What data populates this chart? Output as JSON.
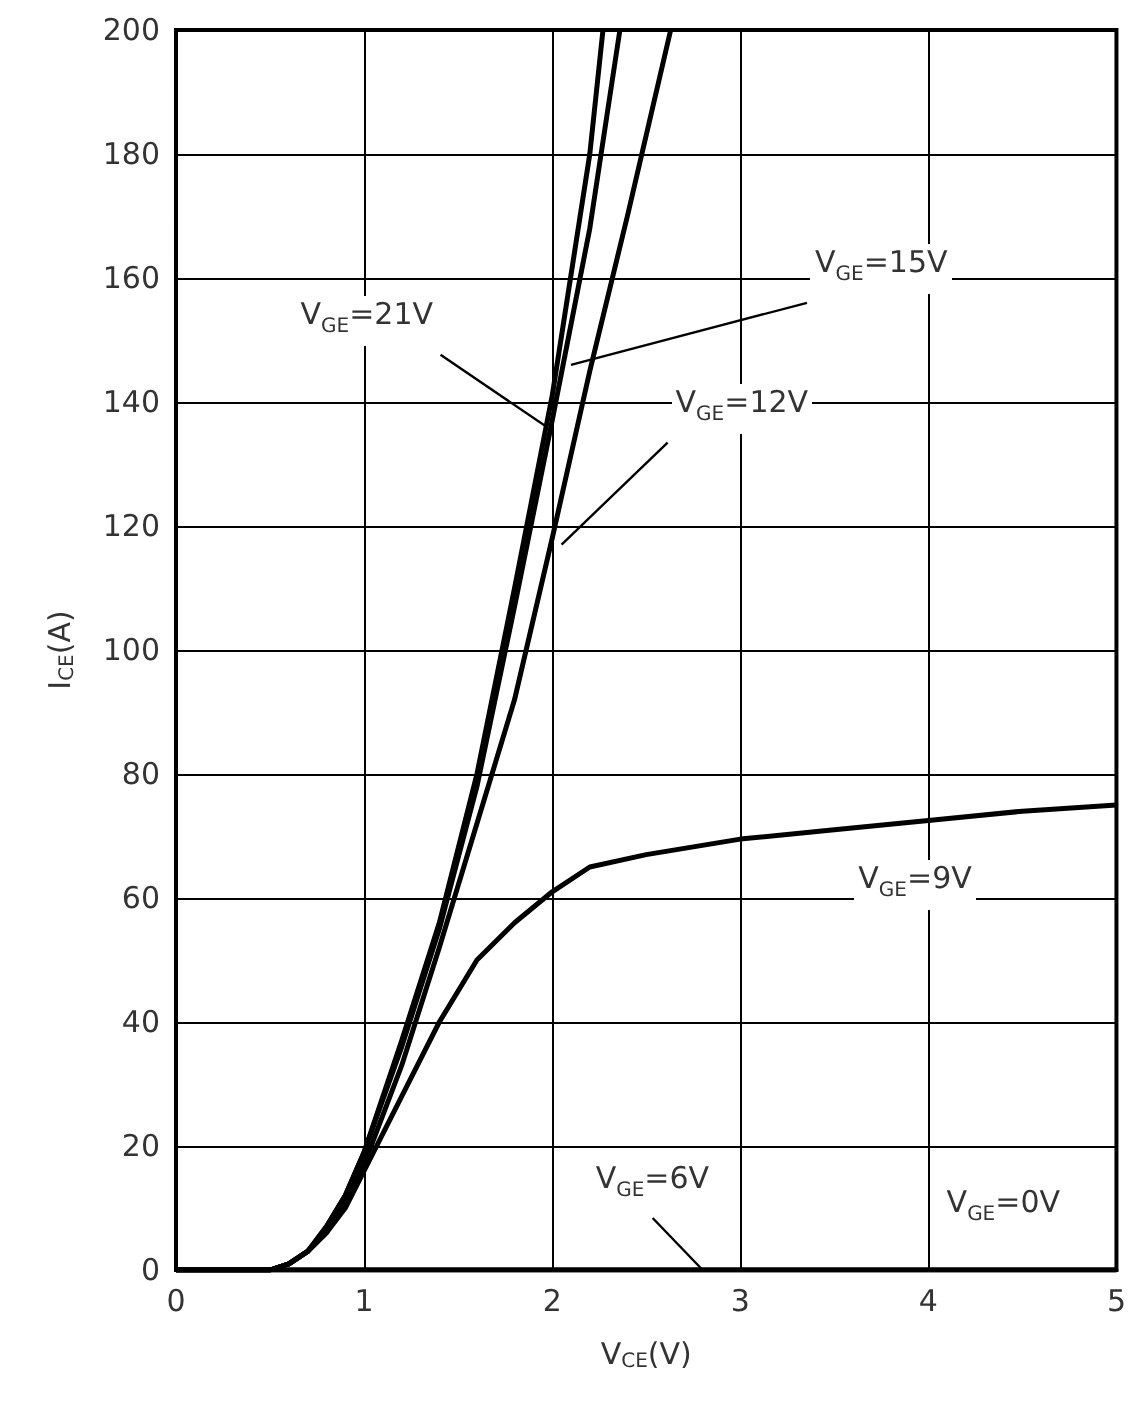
{
  "chart_data": {
    "type": "line",
    "xlabel": "V$_{CE}$(V)",
    "ylabel": "I$_{CE}$(A)",
    "xlim": [
      0,
      5
    ],
    "xticks": [
      0,
      1,
      2,
      3,
      4,
      5
    ],
    "ylim": [
      0,
      200
    ],
    "yticks": [
      0,
      20,
      40,
      60,
      80,
      100,
      120,
      140,
      160,
      180,
      200
    ],
    "grid": true,
    "marker": "none",
    "line_style": "solid",
    "series": [
      {
        "color": "#000000",
        "x": [
          0,
          0.5,
          0.6,
          0.7,
          0.8,
          0.9,
          1.0,
          1.2,
          1.4,
          1.6,
          1.8,
          2.0,
          2.2,
          2.27
        ],
        "values": [
          0,
          0,
          1,
          3,
          7,
          12,
          19,
          37,
          56,
          80,
          110,
          141,
          180,
          200
        ]
      },
      {
        "color": "#000000",
        "x": [
          0,
          0.5,
          0.6,
          0.7,
          0.8,
          0.9,
          1.0,
          1.2,
          1.4,
          1.6,
          1.8,
          2.0,
          2.2,
          2.36
        ],
        "values": [
          0,
          0,
          1,
          3,
          7,
          12,
          19,
          36,
          55,
          78,
          107,
          137,
          168,
          200
        ]
      },
      {
        "color": "#000000",
        "x": [
          0,
          0.5,
          0.6,
          0.7,
          0.8,
          0.9,
          1.0,
          1.2,
          1.4,
          1.6,
          1.8,
          2.0,
          2.2,
          2.4,
          2.63
        ],
        "values": [
          0,
          0,
          1,
          3,
          6,
          11,
          17,
          33,
          52,
          72,
          92,
          118,
          145,
          170,
          200
        ]
      },
      {
        "color": "#000000",
        "x": [
          0,
          0.5,
          0.6,
          0.7,
          0.8,
          0.9,
          1.0,
          1.2,
          1.4,
          1.6,
          1.8,
          2.0,
          2.2,
          2.5,
          3.0,
          3.5,
          4.0,
          4.5,
          5.0
        ],
        "values": [
          0,
          0,
          1,
          3,
          6,
          10,
          16,
          28,
          40,
          50,
          56,
          61,
          65,
          67,
          69.5,
          71,
          72.5,
          74,
          75
        ]
      },
      {
        "color": "#000000",
        "x": [
          0,
          1,
          2,
          3,
          4,
          5
        ],
        "values": [
          0,
          0,
          0,
          0,
          0,
          0
        ]
      },
      {
        "color": "#000000",
        "x": [
          0,
          1,
          2,
          3,
          4,
          5
        ],
        "values": [
          0,
          0,
          0,
          0,
          0,
          0
        ]
      }
    ],
    "annotations": [
      {
        "text": "V$_{GE}$=21V",
        "x": 1.97,
        "y": 136
      },
      {
        "text": "V$_{GE}$=15V",
        "x": 2.1,
        "y": 146
      },
      {
        "text": "V$_{GE}$=12V",
        "x": 2.05,
        "y": 117
      },
      {
        "text": "V$_{GE}$=9V",
        "x": 3.5,
        "y": 71
      },
      {
        "text": "V$_{GE}$=6V",
        "x": 2.8,
        "y": 0
      },
      {
        "text": "V$_{GE}$=0V",
        "x": 4.4,
        "y": 0
      }
    ]
  }
}
